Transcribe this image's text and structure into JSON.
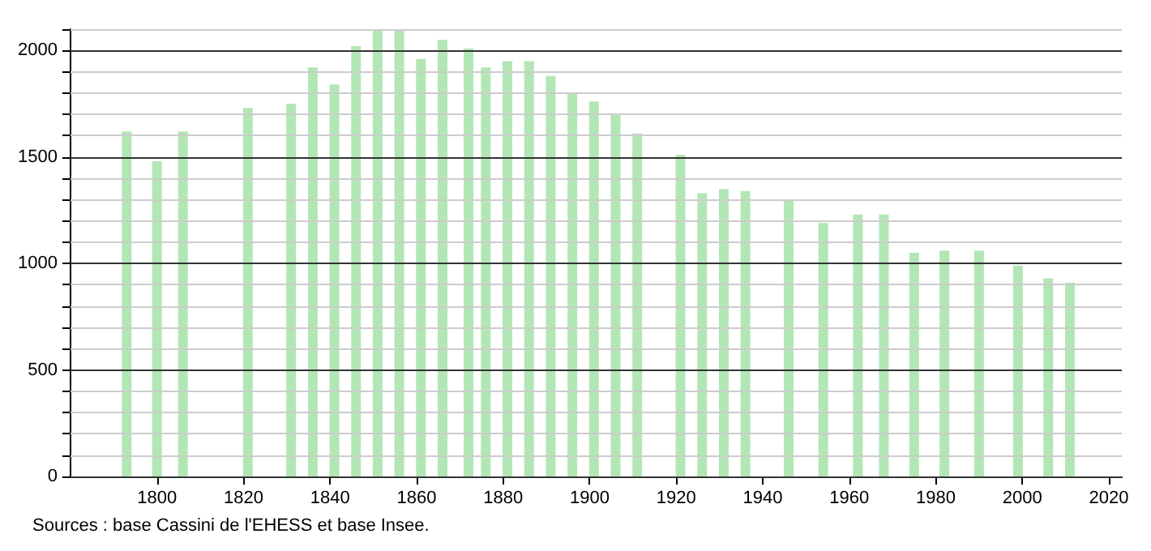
{
  "chart_data": {
    "type": "bar",
    "x": [
      1793,
      1800,
      1806,
      1821,
      1831,
      1836,
      1841,
      1846,
      1851,
      1856,
      1861,
      1866,
      1872,
      1876,
      1881,
      1886,
      1891,
      1896,
      1901,
      1906,
      1911,
      1921,
      1926,
      1931,
      1936,
      1946,
      1954,
      1962,
      1968,
      1975,
      1982,
      1990,
      1999,
      2006,
      2011
    ],
    "values": [
      1620,
      1480,
      1620,
      1730,
      1750,
      1920,
      1840,
      2020,
      2100,
      2100,
      1960,
      2050,
      2010,
      1920,
      1950,
      1950,
      1880,
      1800,
      1760,
      1700,
      1610,
      1510,
      1330,
      1350,
      1340,
      1300,
      1190,
      1230,
      1230,
      1050,
      1060,
      1060,
      990,
      930,
      910
    ],
    "color": "#b3e6b5",
    "xlim": [
      1780,
      2023
    ],
    "xticks": [
      1800,
      1820,
      1840,
      1860,
      1880,
      1900,
      1920,
      1940,
      1960,
      1980,
      2000,
      2020
    ],
    "ylim": [
      0,
      2100
    ],
    "yticks": [
      0,
      {
        "value": 100,
        "label": null
      },
      {
        "value": 200,
        "label": null
      },
      {
        "value": 300,
        "label": null
      },
      {
        "value": 400,
        "label": null
      },
      500,
      {
        "value": 600,
        "label": null
      },
      {
        "value": 700,
        "label": null
      },
      {
        "value": 800,
        "label": null
      },
      {
        "value": 900,
        "label": null
      },
      1000,
      {
        "value": 1100,
        "label": null
      },
      {
        "value": 1200,
        "label": null
      },
      {
        "value": 1300,
        "label": null
      },
      {
        "value": 1400,
        "label": null
      },
      1500,
      {
        "value": 1600,
        "label": null
      },
      {
        "value": 1700,
        "label": null
      },
      {
        "value": 1800,
        "label": null
      },
      {
        "value": 1900,
        "label": null
      },
      2000,
      {
        "value": 2100,
        "label": null
      }
    ],
    "grid": "y",
    "annotations": [
      "Sources : base Cassini de l'EHESS et base Insee."
    ]
  }
}
